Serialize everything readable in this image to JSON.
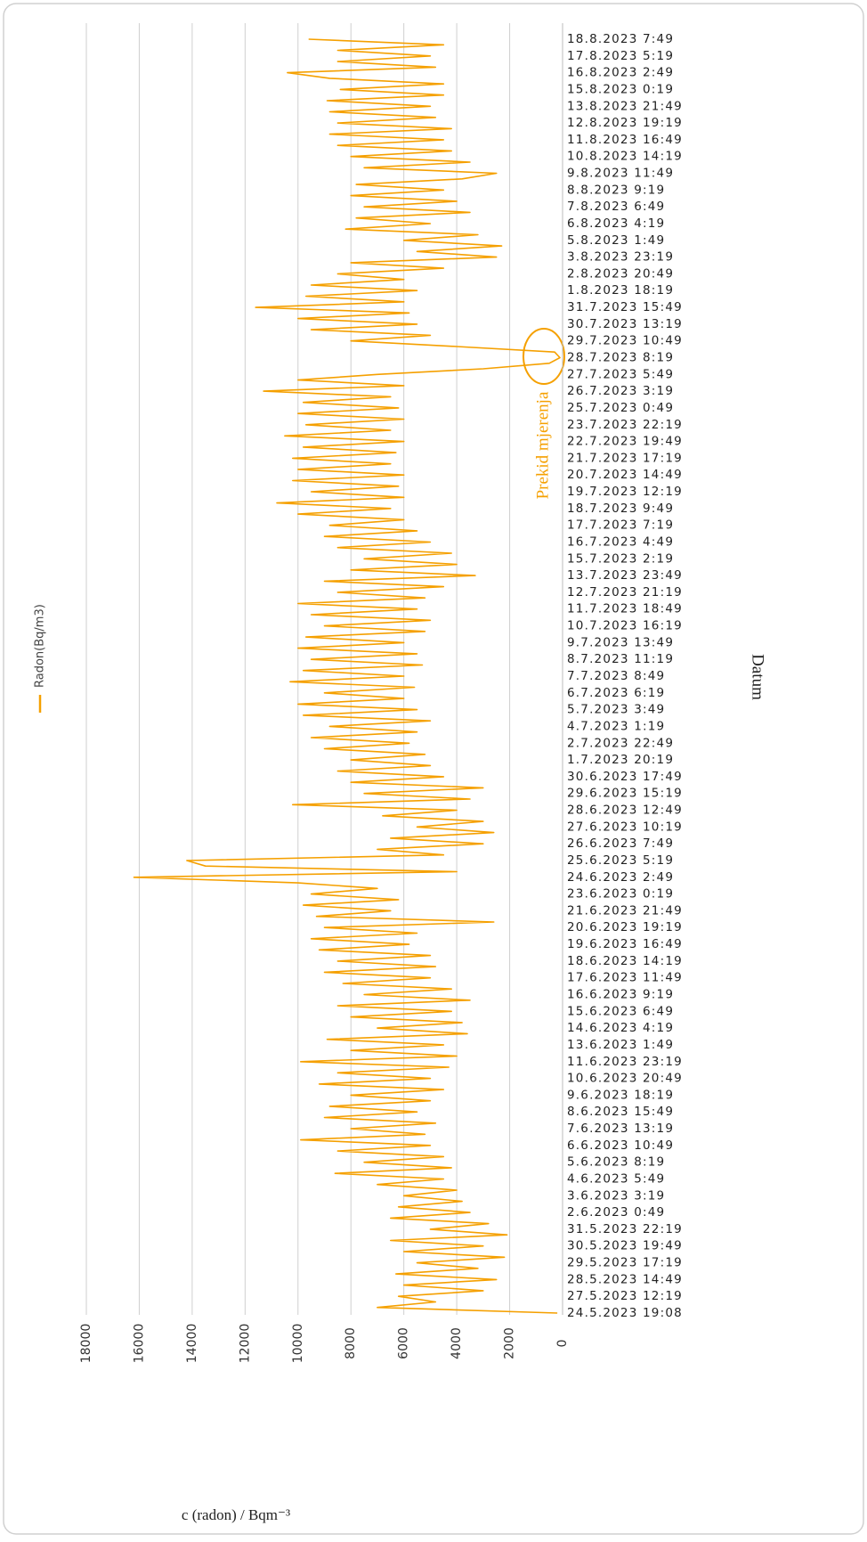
{
  "chart_data": {
    "type": "line",
    "orientation": "horizontal",
    "x_label": "Datum",
    "y_label": "c (radon) / Bqm⁻³",
    "annotation": "Prekid mjerenja",
    "legend": "left",
    "grid": true,
    "ylim": [
      0,
      18000
    ],
    "yticks": [
      0,
      2000,
      4000,
      6000,
      8000,
      10000,
      12000,
      14000,
      16000,
      18000
    ],
    "categories": [
      "24.5.2023 19:08",
      null,
      null,
      "27.5.2023 12:19",
      null,
      null,
      "28.5.2023 14:49",
      null,
      null,
      "29.5.2023 17:19",
      null,
      null,
      "30.5.2023 19:49",
      null,
      null,
      "31.5.2023 22:19",
      null,
      null,
      "2.6.2023 0:49",
      null,
      null,
      "3.6.2023 3:19",
      null,
      null,
      "4.6.2023 5:49",
      null,
      null,
      "5.6.2023 8:19",
      null,
      null,
      "6.6.2023 10:49",
      null,
      null,
      "7.6.2023 13:19",
      null,
      null,
      "8.6.2023 15:49",
      null,
      null,
      "9.6.2023 18:19",
      null,
      null,
      "10.6.2023 20:49",
      null,
      null,
      "11.6.2023 23:19",
      null,
      null,
      "13.6.2023 1:49",
      null,
      null,
      "14.6.2023 4:19",
      null,
      null,
      "15.6.2023 6:49",
      null,
      null,
      "16.6.2023 9:19",
      null,
      null,
      "17.6.2023 11:49",
      null,
      null,
      "18.6.2023 14:19",
      null,
      null,
      "19.6.2023 16:49",
      null,
      null,
      "20.6.2023 19:19",
      null,
      null,
      "21.6.2023 21:49",
      null,
      null,
      "23.6.2023 0:19",
      null,
      null,
      "24.6.2023 2:49",
      null,
      null,
      "25.6.2023 5:19",
      null,
      null,
      "26.6.2023 7:49",
      null,
      null,
      "27.6.2023 10:19",
      null,
      null,
      "28.6.2023 12:49",
      null,
      null,
      "29.6.2023 15:19",
      null,
      null,
      "30.6.2023 17:49",
      null,
      null,
      "1.7.2023 20:19",
      null,
      null,
      "2.7.2023 22:49",
      null,
      null,
      "4.7.2023 1:19",
      null,
      null,
      "5.7.2023 3:49",
      null,
      null,
      "6.7.2023 6:19",
      null,
      null,
      "7.7.2023 8:49",
      null,
      null,
      "8.7.2023 11:19",
      null,
      null,
      "9.7.2023 13:49",
      null,
      null,
      "10.7.2023 16:19",
      null,
      null,
      "11.7.2023 18:49",
      null,
      null,
      "12.7.2023 21:19",
      null,
      null,
      "13.7.2023 23:49",
      null,
      null,
      "15.7.2023 2:19",
      null,
      null,
      "16.7.2023 4:49",
      null,
      null,
      "17.7.2023 7:19",
      null,
      null,
      "18.7.2023 9:49",
      null,
      null,
      "19.7.2023 12:19",
      null,
      null,
      "20.7.2023 14:49",
      null,
      null,
      "21.7.2023 17:19",
      null,
      null,
      "22.7.2023 19:49",
      null,
      null,
      "23.7.2023 22:19",
      null,
      null,
      "25.7.2023 0:49",
      null,
      null,
      "26.7.2023 3:19",
      null,
      null,
      "27.7.2023 5:49",
      null,
      null,
      "28.7.2023 8:19",
      null,
      null,
      "29.7.2023 10:49",
      null,
      null,
      "30.7.2023 13:19",
      null,
      null,
      "31.7.2023 15:49",
      null,
      null,
      "1.8.2023 18:19",
      null,
      null,
      "2.8.2023 20:49",
      null,
      null,
      "3.8.2023 23:19",
      null,
      null,
      "5.8.2023 1:49",
      null,
      null,
      "6.8.2023 4:19",
      null,
      null,
      "7.8.2023 6:49",
      null,
      null,
      "8.8.2023 9:19",
      null,
      null,
      "9.8.2023 11:49",
      null,
      null,
      "10.8.2023 14:19",
      null,
      null,
      "11.8.2023 16:49",
      null,
      null,
      "12.8.2023 19:19",
      null,
      null,
      "13.8.2023 21:49",
      null,
      null,
      "15.8.2023 0:19",
      null,
      null,
      "16.8.2023 2:49",
      null,
      null,
      "17.8.2023 5:19",
      null,
      null,
      "18.8.2023 7:49"
    ],
    "series": [
      {
        "name": "Radon(Bq/m3)",
        "color": "#f5a000",
        "values": [
          200,
          7000,
          4800,
          6200,
          3000,
          6000,
          2500,
          6300,
          3200,
          5500,
          2200,
          6000,
          3000,
          6500,
          2100,
          5000,
          2800,
          6500,
          3500,
          6200,
          3800,
          6000,
          4000,
          7000,
          4500,
          8600,
          4200,
          7500,
          4500,
          8500,
          5000,
          9900,
          5200,
          8000,
          4800,
          9000,
          5500,
          8800,
          5000,
          8000,
          4500,
          9200,
          5000,
          8500,
          4300,
          9900,
          4000,
          8000,
          4500,
          8900,
          3600,
          7000,
          3800,
          8000,
          4200,
          8500,
          3500,
          7500,
          4200,
          8300,
          5000,
          9000,
          4800,
          8500,
          5000,
          9200,
          5800,
          9500,
          5500,
          9000,
          2600,
          9300,
          6500,
          9800,
          6200,
          9500,
          7000,
          10000,
          16200,
          4000,
          13500,
          14200,
          4500,
          7000,
          3000,
          6500,
          2600,
          5500,
          3000,
          6800,
          4000,
          10200,
          3500,
          7500,
          3000,
          8000,
          4500,
          8500,
          5000,
          8000,
          5200,
          9000,
          5800,
          9500,
          5500,
          8800,
          5000,
          9800,
          5500,
          10000,
          6000,
          9000,
          5600,
          10300,
          6000,
          9800,
          5300,
          9500,
          5500,
          10000,
          6000,
          9700,
          5200,
          9000,
          5000,
          9500,
          5500,
          10000,
          5200,
          8500,
          4500,
          9000,
          3300,
          8000,
          4000,
          7500,
          4200,
          8500,
          5000,
          9000,
          5500,
          8800,
          6000,
          10000,
          6500,
          10800,
          6000,
          9500,
          6200,
          10200,
          6000,
          10000,
          6500,
          10200,
          6300,
          9800,
          6000,
          10500,
          6500,
          9700,
          6000,
          10000,
          6200,
          9800,
          6500,
          11300,
          6000,
          10000,
          7000,
          3000,
          500,
          100,
          300,
          4000,
          8000,
          5000,
          9500,
          5500,
          10000,
          5800,
          11600,
          6000,
          9700,
          5500,
          9500,
          6000,
          8500,
          4500,
          8000,
          2500,
          5500,
          2300,
          6000,
          3200,
          8200,
          5000,
          7800,
          3500,
          7500,
          4000,
          8000,
          4500,
          7800,
          3800,
          2500,
          7500,
          3500,
          8000,
          4200,
          8500,
          4500,
          8800,
          4200,
          8500,
          4800,
          8800,
          5000,
          8900,
          4500,
          8400,
          4500,
          8800,
          10400,
          4800,
          8500,
          5000,
          8500,
          4500,
          9600
        ]
      }
    ]
  }
}
